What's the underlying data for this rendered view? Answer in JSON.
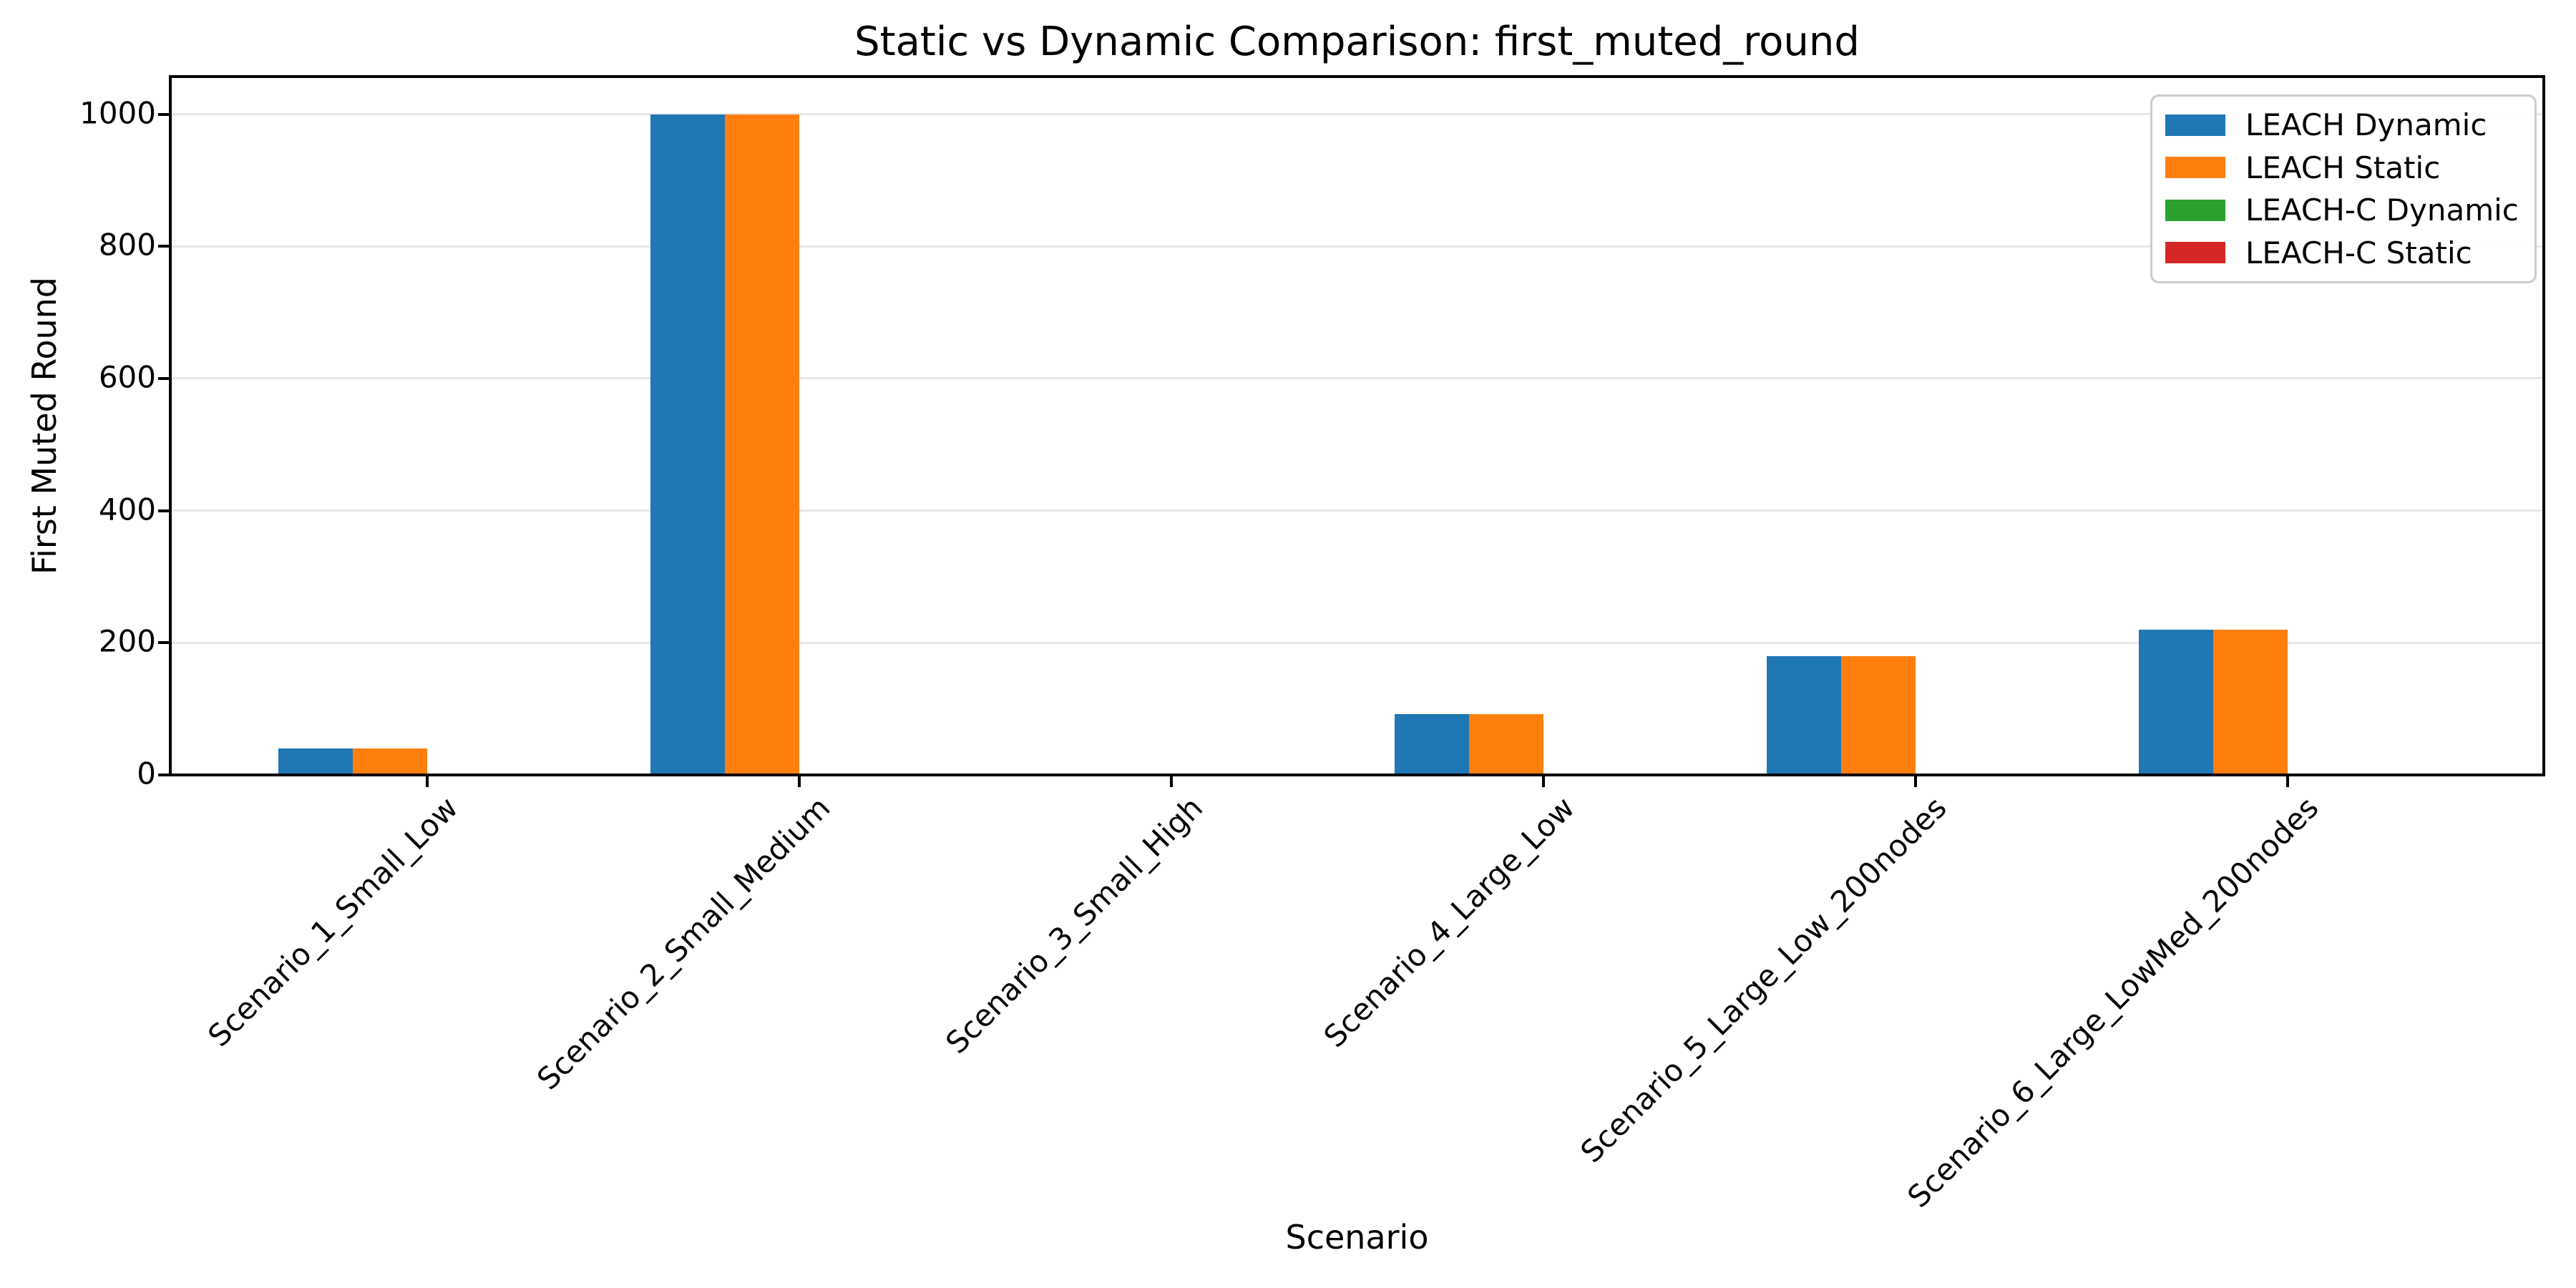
{
  "chart_data": {
    "type": "bar",
    "title": "Static vs Dynamic Comparison: first_muted_round",
    "xlabel": "Scenario",
    "ylabel": "First Muted Round",
    "categories": [
      "Scenario_1_Small_Low",
      "Scenario_2_Small_Medium",
      "Scenario_3_Small_High",
      "Scenario_4_Large_Low",
      "Scenario_5_Large_Low_200nodes",
      "Scenario_6_Large_LowMed_200nodes"
    ],
    "series": [
      {
        "name": "LEACH Dynamic",
        "color": "#1f77b4",
        "values": [
          40,
          1000,
          0,
          92,
          180,
          220
        ]
      },
      {
        "name": "LEACH Static",
        "color": "#ff7f0e",
        "values": [
          40,
          1000,
          0,
          92,
          180,
          220
        ]
      },
      {
        "name": "LEACH-C Dynamic",
        "color": "#2ca02c",
        "values": [
          0,
          0,
          0,
          0,
          0,
          0
        ]
      },
      {
        "name": "LEACH-C Static",
        "color": "#d62728",
        "values": [
          0,
          0,
          0,
          0,
          0,
          0
        ]
      }
    ],
    "yticks": [
      0,
      200,
      400,
      600,
      800,
      1000
    ],
    "ylim": [
      0,
      1057
    ],
    "grid": "horizontal",
    "legend_position": "upper right",
    "colors": {
      "axis": "#000000",
      "gridline": "#e8e8e8",
      "legend_border": "#cccccc",
      "background": "#ffffff"
    }
  }
}
